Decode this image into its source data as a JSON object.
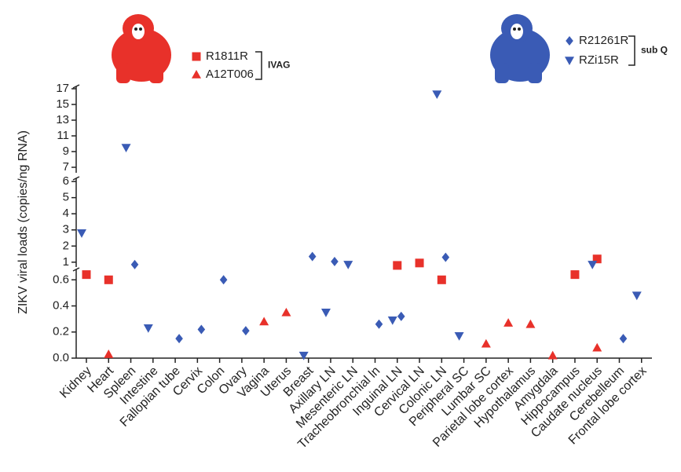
{
  "chart_data": {
    "type": "scatter",
    "y_label": "ZIKV viral loads (copies/ng RNA)",
    "categories": [
      "Kidney",
      "Heart",
      "Spleen",
      "Intestine",
      "Fallopian tube",
      "Cervix",
      "Colon",
      "Ovary",
      "Vagina",
      "Uterus",
      "Breast",
      "Axillary LN",
      "Mesenteric LN",
      "Tracheobronchial ln",
      "Inguinal LN",
      "Cervical LN",
      "Colonic LN",
      "Peripheral SC",
      "Lumbar SC",
      "Parietal lobe cortex",
      "Hypothalamus",
      "Amygdala",
      "Hippocampus",
      "Caudate nucleus",
      "Cerebelleum",
      "Frontal lobe cortex"
    ],
    "y_segments": [
      {
        "ylim": [
          0,
          0.68
        ],
        "yticks": [
          {
            "value": 0,
            "label": "0.0"
          },
          0.2,
          0.4,
          0.6
        ]
      },
      {
        "ylim": [
          0.7,
          6.2
        ],
        "yticks": [
          1,
          2,
          3,
          4,
          5,
          6
        ]
      },
      {
        "ylim": [
          6.3,
          17.3
        ],
        "yticks": [
          7,
          9,
          11,
          13,
          15,
          17
        ]
      }
    ],
    "series": [
      {
        "name": "R1811R",
        "group": "IVAG",
        "color": "#e8312a",
        "marker": "square",
        "values": [
          0.64,
          0.6,
          null,
          null,
          null,
          null,
          null,
          null,
          null,
          null,
          null,
          null,
          null,
          null,
          0.8,
          0.95,
          0.6,
          null,
          null,
          null,
          null,
          null,
          0.64,
          1.2,
          null,
          null
        ]
      },
      {
        "name": "A12T006",
        "group": "IVAG",
        "color": "#e8312a",
        "marker": "triangle",
        "values": [
          null,
          0.03,
          null,
          null,
          null,
          null,
          null,
          null,
          0.28,
          0.35,
          null,
          null,
          null,
          null,
          null,
          null,
          null,
          null,
          0.11,
          0.27,
          0.26,
          0.02,
          null,
          0.08,
          null,
          null
        ]
      },
      {
        "name": "R21261R",
        "group": "sub Q",
        "color": "#3a5bb5",
        "marker": "diamond",
        "values": [
          null,
          null,
          0.85,
          null,
          0.15,
          0.22,
          0.6,
          0.21,
          null,
          null,
          1.35,
          1.04,
          null,
          0.26,
          0.32,
          null,
          1.3,
          null,
          null,
          null,
          null,
          null,
          null,
          null,
          0.15,
          null
        ]
      },
      {
        "name": "RZi15R",
        "group": "sub Q",
        "color": "#3a5bb5",
        "marker": "triangle-down",
        "values": [
          2.8,
          null,
          9.5,
          0.23,
          null,
          null,
          null,
          null,
          null,
          null,
          0.02,
          0.35,
          0.85,
          null,
          0.29,
          null,
          16.3,
          0.17,
          null,
          null,
          null,
          null,
          null,
          0.85,
          null,
          0.48
        ]
      }
    ]
  }
}
